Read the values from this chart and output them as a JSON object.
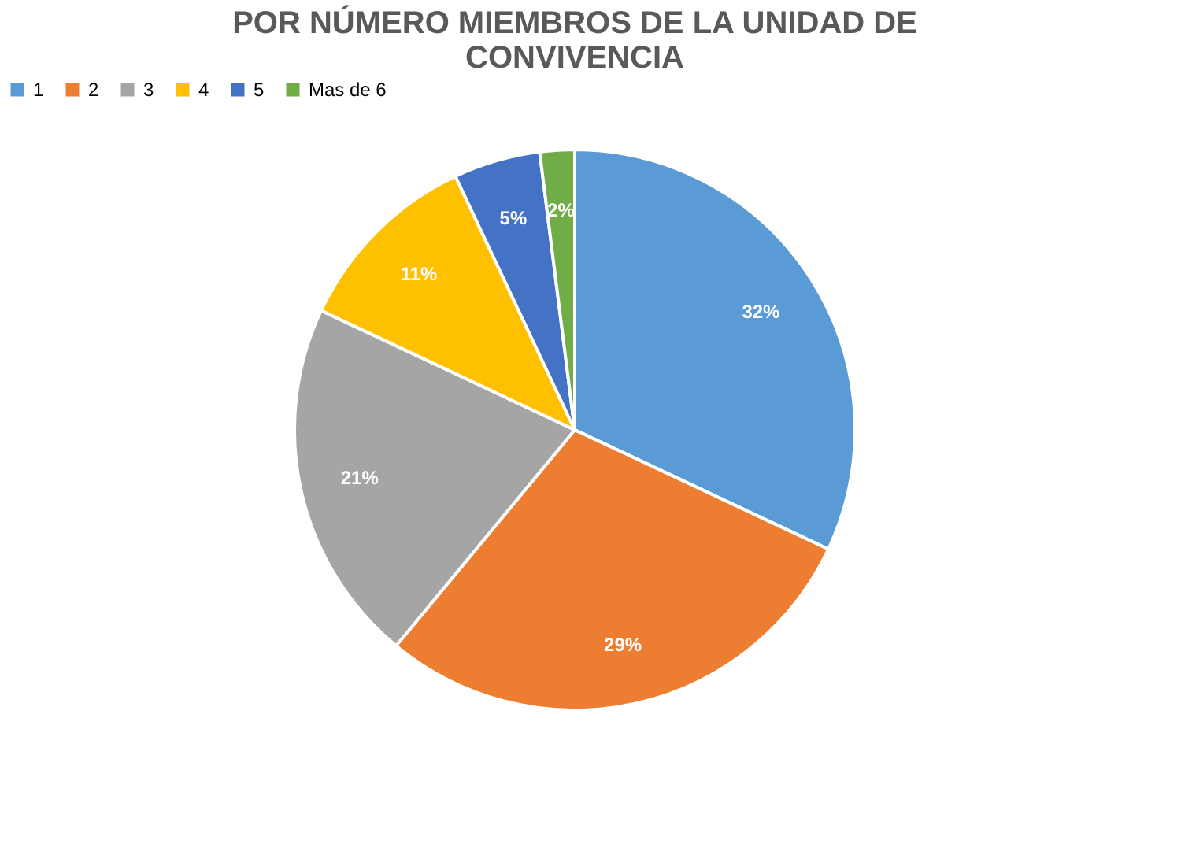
{
  "chart_data": {
    "type": "pie",
    "title": "POR NÚMERO MIEMBROS DE LA UNIDAD DE CONVIVENCIA",
    "categories": [
      "1",
      "2",
      "3",
      "4",
      "5",
      "Mas de 6"
    ],
    "values": [
      32,
      29,
      21,
      11,
      5,
      2
    ],
    "colors": [
      "#5b9bd5",
      "#ed7d31",
      "#a5a5a5",
      "#ffc000",
      "#4472c4",
      "#70ad47"
    ],
    "value_labels": [
      "32%",
      "29%",
      "21%",
      "11%",
      "5%",
      "2%"
    ],
    "legend": "top"
  }
}
